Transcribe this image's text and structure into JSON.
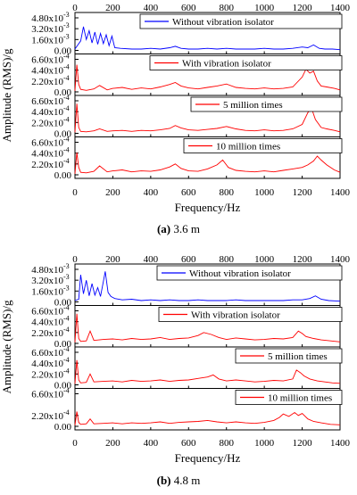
{
  "chart_data": [
    {
      "type": "line",
      "caption_letter": "(a)",
      "caption_text": " 3.6 m",
      "xlabel": "Frequency/Hz",
      "ylabel": "Amplitude (RMS)/g",
      "xlim": [
        0,
        1400
      ],
      "x_ticks": [
        "0",
        "200",
        "400",
        "600",
        "800",
        "1000",
        "1200",
        "1400"
      ],
      "grid": false,
      "panels": [
        {
          "legend": "Without vibration isolator",
          "color": "#0000ff",
          "ylim": [
            0,
            0.0048
          ],
          "y_ticks": [
            "4.80x10",
            "3.20x10",
            "1.60x10",
            "0.00"
          ],
          "y_tick_exp": [
            "-3",
            "-3",
            "-3",
            ""
          ],
          "series": {
            "x": [
              0,
              15,
              30,
              45,
              60,
              75,
              90,
              105,
              120,
              135,
              150,
              165,
              180,
              195,
              210,
              240,
              300,
              350,
              400,
              450,
              500,
              530,
              560,
              600,
              650,
              700,
              750,
              800,
              850,
              900,
              950,
              1000,
              1050,
              1100,
              1150,
              1200,
              1230,
              1260,
              1290,
              1320,
              1360,
              1400
            ],
            "y": [
              0.0002,
              0.0008,
              0.0014,
              0.0035,
              0.0016,
              0.0029,
              0.0011,
              0.0027,
              0.0009,
              0.0025,
              0.001,
              0.0023,
              0.0007,
              0.0021,
              0.0004,
              0.0003,
              0.0002,
              0.0002,
              0.0003,
              0.0002,
              0.0004,
              0.0006,
              0.0003,
              0.0002,
              0.0002,
              0.0003,
              0.0002,
              0.0003,
              0.0002,
              0.0002,
              0.0002,
              0.0003,
              0.0002,
              0.0002,
              0.0003,
              0.0005,
              0.0004,
              0.0008,
              0.0003,
              0.0002,
              0.0002,
              0.0001
            ]
          }
        },
        {
          "legend": "With vibration isolator",
          "color": "#ff0000",
          "ylim": [
            0,
            0.00066
          ],
          "y_ticks": [
            "6.60x10",
            "4.40x10",
            "2.20x10",
            "0.00"
          ],
          "y_tick_exp": [
            "-4",
            "-4",
            "-4",
            ""
          ],
          "series": {
            "x": [
              0,
              10,
              20,
              30,
              60,
              100,
              130,
              170,
              200,
              250,
              300,
              350,
              400,
              450,
              500,
              530,
              560,
              600,
              650,
              700,
              750,
              800,
              850,
              900,
              950,
              1000,
              1050,
              1100,
              1150,
              1200,
              1220,
              1240,
              1260,
              1280,
              1300,
              1330,
              1370,
              1400
            ],
            "y": [
              2e-05,
              0.00055,
              0.00015,
              5e-05,
              3e-05,
              6e-05,
              0.00013,
              4e-05,
              7e-05,
              9e-05,
              5e-05,
              8e-05,
              6e-05,
              0.0001,
              0.00015,
              0.00019,
              0.00012,
              8e-05,
              6e-05,
              9e-05,
              0.00012,
              0.00016,
              9e-05,
              7e-05,
              6e-05,
              8e-05,
              6e-05,
              7e-05,
              0.0001,
              0.0003,
              0.00046,
              0.00038,
              0.00042,
              0.00022,
              0.00012,
              0.0001,
              7e-05,
              4e-05
            ]
          }
        },
        {
          "legend": "5 million times",
          "color": "#ff0000",
          "ylim": [
            0,
            0.00066
          ],
          "y_ticks": [
            "6.60x10",
            "4.40x10",
            "2.20x10",
            "0.00"
          ],
          "y_tick_exp": [
            "-4",
            "-4",
            "-4",
            ""
          ],
          "series": {
            "x": [
              0,
              10,
              20,
              30,
              60,
              100,
              130,
              170,
              200,
              250,
              300,
              350,
              400,
              450,
              500,
              530,
              560,
              600,
              650,
              700,
              750,
              800,
              850,
              900,
              950,
              1000,
              1050,
              1100,
              1150,
              1200,
              1230,
              1250,
              1270,
              1300,
              1330,
              1370,
              1400
            ],
            "y": [
              2e-05,
              0.0006,
              0.00012,
              4e-05,
              3e-05,
              5e-05,
              9e-05,
              4e-05,
              5e-05,
              6e-05,
              4e-05,
              6e-05,
              5e-05,
              7e-05,
              0.0001,
              0.00016,
              0.00011,
              7e-05,
              6e-05,
              8e-05,
              0.0001,
              0.00014,
              9e-05,
              6e-05,
              5e-05,
              7e-05,
              5e-05,
              6e-05,
              9e-05,
              0.00018,
              0.00042,
              0.0005,
              0.00028,
              0.00012,
              9e-05,
              6e-05,
              3e-05
            ]
          }
        },
        {
          "legend": "10 million times",
          "color": "#ff0000",
          "ylim": [
            0,
            0.00066
          ],
          "y_ticks": [
            "6.60x10",
            "4.40x10",
            "2.20x10",
            "0.00"
          ],
          "y_tick_exp": [
            "-4",
            "-4",
            "-4",
            ""
          ],
          "series": {
            "x": [
              0,
              10,
              20,
              30,
              60,
              100,
              130,
              170,
              200,
              250,
              300,
              350,
              400,
              450,
              500,
              530,
              560,
              600,
              650,
              700,
              750,
              780,
              810,
              850,
              900,
              950,
              1000,
              1050,
              1100,
              1150,
              1200,
              1230,
              1260,
              1280,
              1300,
              1330,
              1370,
              1400
            ],
            "y": [
              2e-05,
              0.00045,
              0.00015,
              5e-05,
              4e-05,
              7e-05,
              0.00018,
              6e-05,
              8e-05,
              0.0001,
              6e-05,
              8e-05,
              7e-05,
              0.0001,
              0.00016,
              0.00022,
              0.00013,
              8e-05,
              7e-05,
              0.00012,
              0.0002,
              0.0003,
              0.00015,
              9e-05,
              7e-05,
              6e-05,
              8e-05,
              6e-05,
              9e-05,
              0.00012,
              0.00015,
              0.0002,
              0.00028,
              0.00038,
              0.0003,
              0.0002,
              0.0001,
              5e-05
            ]
          }
        }
      ]
    },
    {
      "type": "line",
      "caption_letter": "(b)",
      "caption_text": " 4.8 m",
      "xlabel": "Frequency/Hz",
      "ylabel": "Amplitude (RMS)/g",
      "xlim": [
        0,
        1400
      ],
      "x_ticks": [
        "0",
        "200",
        "400",
        "600",
        "800",
        "1000",
        "1200",
        "1400"
      ],
      "grid": false,
      "panels": [
        {
          "legend": "Without vibration isolator",
          "color": "#0000ff",
          "ylim": [
            0,
            0.0048
          ],
          "y_ticks": [
            "4.80x10",
            "3.20x10",
            "1.60x10",
            "0.00"
          ],
          "y_tick_exp": [
            "-3",
            "-3",
            "-3",
            ""
          ],
          "series": {
            "x": [
              0,
              20,
              30,
              45,
              60,
              75,
              90,
              105,
              120,
              135,
              150,
              160,
              175,
              190,
              210,
              250,
              300,
              350,
              400,
              450,
              500,
              550,
              600,
              650,
              700,
              750,
              800,
              850,
              900,
              950,
              1000,
              1050,
              1100,
              1150,
              1200,
              1240,
              1270,
              1300,
              1340,
              1400
            ],
            "y": [
              0.0002,
              0.0004,
              0.004,
              0.0012,
              0.0032,
              0.0009,
              0.0027,
              0.001,
              0.0021,
              0.0008,
              0.003,
              0.0045,
              0.0014,
              0.0008,
              0.0005,
              0.0003,
              0.0004,
              0.0002,
              0.0003,
              0.0002,
              0.0003,
              0.0002,
              0.0002,
              0.0003,
              0.0002,
              0.0002,
              0.0002,
              0.0003,
              0.0002,
              0.0002,
              0.0002,
              0.0002,
              0.0002,
              0.0003,
              0.0003,
              0.0005,
              0.0009,
              0.0004,
              0.0002,
              0.0001
            ]
          }
        },
        {
          "legend": "With vibration isolator",
          "color": "#ff0000",
          "ylim": [
            0,
            0.00066
          ],
          "y_ticks": [
            "6.60x10",
            "4.40x10",
            "2.20x10",
            "0.00"
          ],
          "y_tick_exp": [
            "-4",
            "-4",
            "-4",
            ""
          ],
          "series": {
            "x": [
              0,
              10,
              20,
              30,
              60,
              80,
              100,
              150,
              200,
              250,
              300,
              350,
              400,
              450,
              500,
              550,
              600,
              650,
              680,
              720,
              760,
              800,
              850,
              900,
              950,
              1000,
              1050,
              1100,
              1150,
              1180,
              1200,
              1220,
              1260,
              1300,
              1350,
              1400
            ],
            "y": [
              2e-05,
              0.0006,
              0.0001,
              4e-05,
              5e-05,
              0.00025,
              6e-05,
              8e-05,
              9e-05,
              7e-05,
              0.0001,
              8e-05,
              9e-05,
              0.00012,
              8e-05,
              0.0001,
              0.00011,
              0.00016,
              0.00022,
              0.00018,
              0.00012,
              8e-05,
              0.00011,
              9e-05,
              7e-05,
              8e-05,
              0.0001,
              9e-05,
              0.00012,
              0.00025,
              0.0002,
              0.00014,
              0.0001,
              7e-05,
              5e-05,
              3e-05
            ]
          }
        },
        {
          "legend": "5 million times",
          "color": "#ff0000",
          "ylim": [
            0,
            0.00066
          ],
          "y_ticks": [
            "6.60x10",
            "4.40x10",
            "2.20x10",
            "0.00"
          ],
          "y_tick_exp": [
            "-4",
            "-4",
            "-4",
            ""
          ],
          "series": {
            "x": [
              0,
              10,
              20,
              30,
              60,
              80,
              100,
              150,
              200,
              250,
              300,
              350,
              400,
              450,
              500,
              550,
              600,
              650,
              700,
              730,
              760,
              800,
              850,
              900,
              950,
              1000,
              1050,
              1100,
              1150,
              1170,
              1190,
              1210,
              1240,
              1280,
              1320,
              1360,
              1400
            ],
            "y": [
              2e-05,
              0.0005,
              0.0001,
              4e-05,
              5e-05,
              0.00022,
              6e-05,
              7e-05,
              8e-05,
              6e-05,
              9e-05,
              7e-05,
              8e-05,
              0.0001,
              7e-05,
              9e-05,
              0.0001,
              0.00013,
              0.00016,
              0.0002,
              0.00012,
              8e-05,
              0.0001,
              8e-05,
              6e-05,
              7e-05,
              9e-05,
              8e-05,
              0.00012,
              0.0003,
              0.00025,
              0.00018,
              0.00012,
              8e-05,
              6e-05,
              4e-05,
              3e-05
            ]
          }
        },
        {
          "legend": "10 million times",
          "color": "#ff0000",
          "ylim": [
            0,
            0.00066
          ],
          "y_ticks": [
            "6.60x10",
            "2.20x10",
            "0.00"
          ],
          "y_tick_exp": [
            "-4",
            "-4",
            ""
          ],
          "y_tick_values": [
            0.00066,
            0.00022,
            0
          ],
          "series": {
            "x": [
              0,
              10,
              20,
              30,
              60,
              80,
              100,
              150,
              200,
              250,
              300,
              350,
              400,
              450,
              500,
              550,
              600,
              650,
              700,
              750,
              800,
              850,
              900,
              950,
              1000,
              1050,
              1080,
              1100,
              1130,
              1160,
              1180,
              1200,
              1230,
              1260,
              1300,
              1350,
              1400
            ],
            "y": [
              2e-05,
              0.0003,
              8e-05,
              4e-05,
              5e-05,
              0.00015,
              5e-05,
              6e-05,
              7e-05,
              5e-05,
              7e-05,
              6e-05,
              7e-05,
              9e-05,
              6e-05,
              8e-05,
              9e-05,
              0.0001,
              0.00012,
              9e-05,
              7e-05,
              9e-05,
              7e-05,
              6e-05,
              8e-05,
              0.00012,
              0.00018,
              0.00025,
              0.0002,
              0.00028,
              0.00022,
              0.00026,
              0.00015,
              0.0001,
              7e-05,
              4e-05,
              3e-05
            ]
          }
        }
      ]
    }
  ]
}
